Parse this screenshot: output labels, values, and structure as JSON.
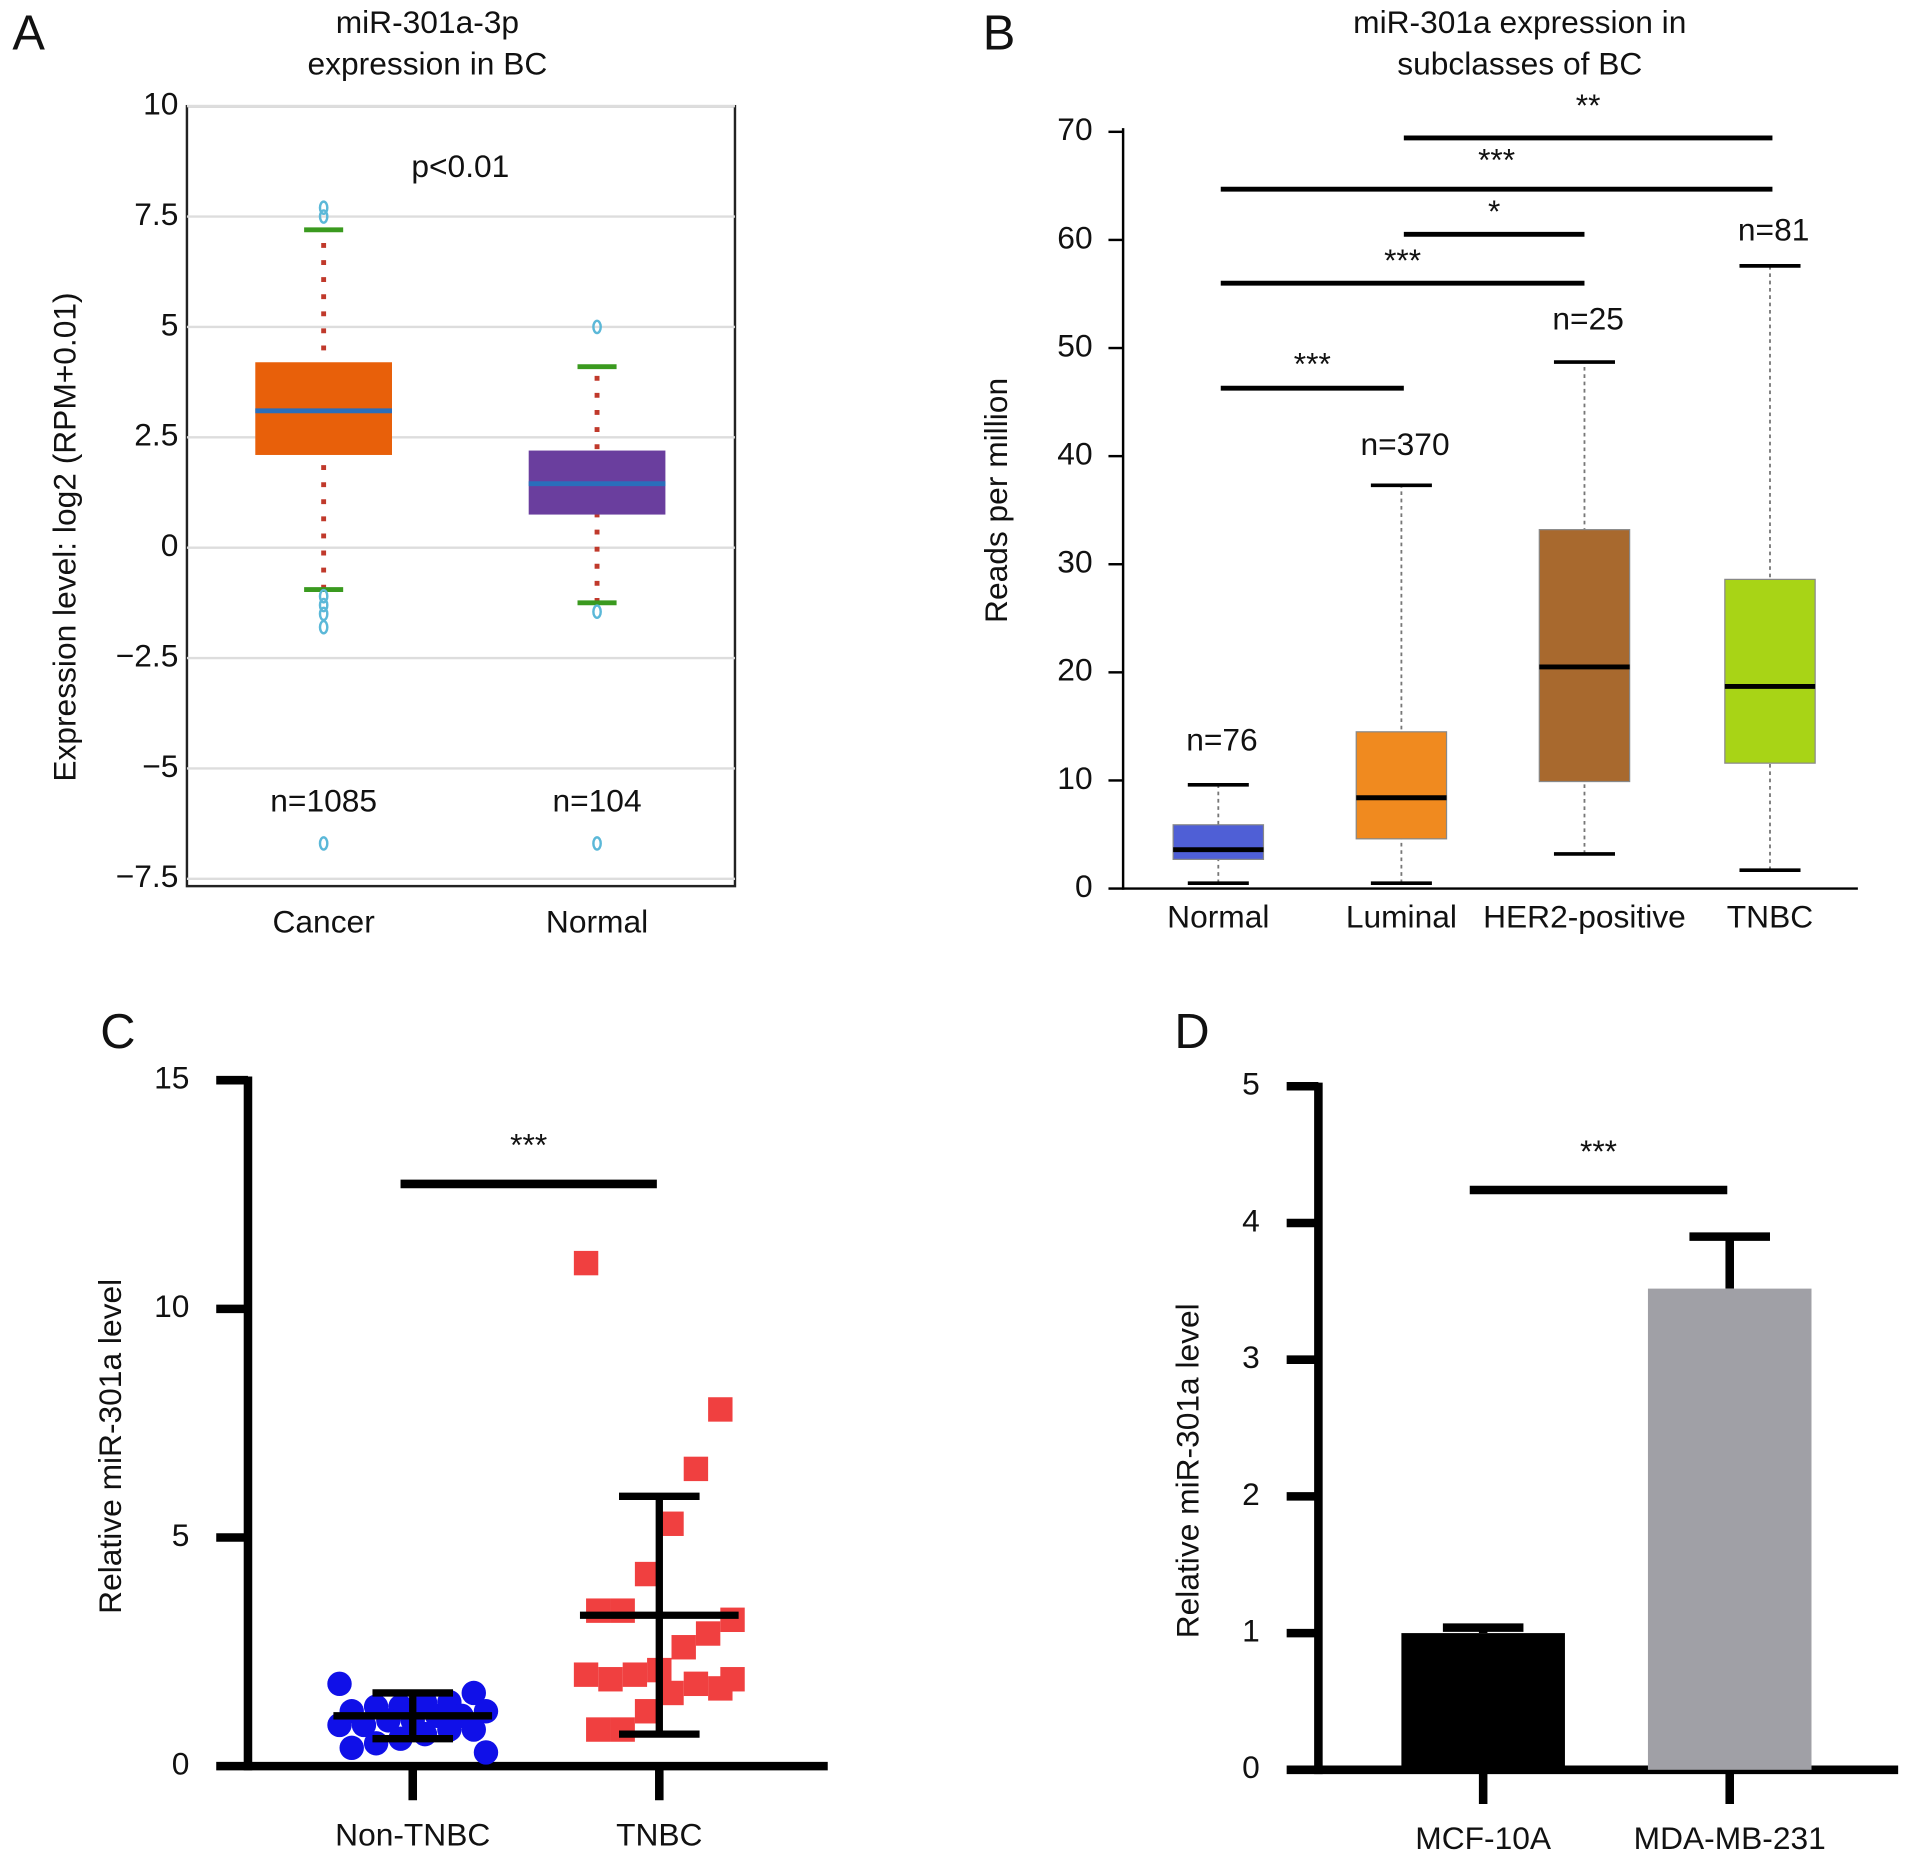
{
  "chart_data": [
    {
      "type": "box",
      "panel": "A",
      "title": [
        "miR-301a-3p",
        "expression in BC"
      ],
      "y_label": "Expression level: log2 (RPM+0.01)",
      "categories": [
        "Cancer",
        "Normal"
      ],
      "boxes": [
        {
          "color": "#e8600a",
          "whisker_low": -0.95,
          "q1": 2.1,
          "median": 3.1,
          "q3": 4.2,
          "whisker_high": 7.2,
          "outliers": [
            7.7,
            7.5,
            -1.1,
            -1.3,
            -1.5,
            -1.8,
            -6.7
          ]
        },
        {
          "color": "#6a3e9e",
          "whisker_low": -1.25,
          "q1": 0.75,
          "median": 1.45,
          "q3": 2.2,
          "whisker_high": 4.1,
          "outliers": [
            5.0,
            -1.45,
            -6.7
          ]
        }
      ],
      "n_labels": [
        "n=1085",
        "n=104"
      ],
      "annotation": "p<0.01",
      "median_color": "#2a6ebb",
      "cap_color": "#3a9a1f",
      "whisker_color": "#c0392b",
      "outlier_color": "#5bb8d8",
      "ylim": [
        -7.5,
        10
      ],
      "yticks": [
        {
          "value": -7.5,
          "label": "−7.5"
        },
        {
          "value": -5,
          "label": "−5"
        },
        {
          "value": -2.5,
          "label": "−2.5"
        },
        0,
        2.5,
        5,
        7.5,
        10
      ],
      "grid": true
    },
    {
      "type": "box",
      "panel": "B",
      "title": [
        "miR-301a expression in",
        "subclasses of BC"
      ],
      "y_label": "Reads per million",
      "categories": [
        "Normal",
        "Luminal",
        "HER2-positive",
        "TNBC"
      ],
      "boxes": [
        {
          "color": "#4f5fd6",
          "whisker_low": 0.5,
          "q1": 2.7,
          "median": 3.6,
          "q3": 5.9,
          "whisker_high": 9.6,
          "outliers": []
        },
        {
          "color": "#f08a1f",
          "whisker_low": 0.5,
          "q1": 4.6,
          "median": 8.4,
          "q3": 14.5,
          "whisker_high": 37.3,
          "outliers": []
        },
        {
          "color": "#a8692e",
          "whisker_low": 3.2,
          "q1": 9.9,
          "median": 20.5,
          "q3": 33.2,
          "whisker_high": 48.7,
          "outliers": []
        },
        {
          "color": "#a8d416",
          "whisker_low": 1.7,
          "q1": 11.6,
          "median": 18.7,
          "q3": 28.6,
          "whisker_high": 57.6,
          "outliers": []
        }
      ],
      "n_labels": [
        "n=76",
        "n=370",
        "n=25",
        "n=81"
      ],
      "significance": [
        "**",
        "***",
        "*",
        "***",
        "***"
      ],
      "median_color": "#000000",
      "cap_color": "#000000",
      "whisker_color": "#777777",
      "ylim": [
        0,
        70
      ],
      "yticks": [
        0,
        10,
        20,
        30,
        40,
        50,
        60,
        70
      ],
      "grid": false
    },
    {
      "type": "dot",
      "panel": "C",
      "y_label": "Relative miR-301a level",
      "categories": [
        "Non-TNBC",
        "TNBC"
      ],
      "groups": [
        {
          "color": "#1010e8",
          "marker": "circle",
          "mean": 1.1,
          "sd": 0.5,
          "values": [
            1.8,
            1.6,
            1.4,
            1.4,
            1.3,
            1.3,
            1.2,
            1.2,
            1.1,
            1.1,
            1.0,
            1.0,
            0.9,
            0.9,
            0.8,
            0.8,
            0.7,
            0.6,
            0.5,
            0.4,
            0.3
          ]
        },
        {
          "color": "#f04040",
          "marker": "square",
          "mean": 3.3,
          "sd": 2.6,
          "values": [
            11.0,
            7.8,
            6.5,
            5.3,
            4.2,
            3.4,
            3.4,
            3.2,
            2.9,
            2.6,
            2.1,
            2.0,
            1.9,
            2.0,
            1.7,
            1.8,
            1.6,
            1.2,
            0.8,
            0.8,
            1.9
          ]
        }
      ],
      "significance": [
        "***"
      ],
      "ylim": [
        0,
        15
      ],
      "yticks": [
        0,
        5,
        10,
        15
      ]
    },
    {
      "type": "bar",
      "panel": "D",
      "y_label": "Relative miR-301a level",
      "categories": [
        "MCF-10A",
        "MDA-MB-231"
      ],
      "values": [
        1.0,
        3.52
      ],
      "errors": [
        0.04,
        0.38
      ],
      "colors": [
        "#000000",
        "#a0a0a6"
      ],
      "significance": [
        "***"
      ],
      "ylim": [
        0,
        5
      ],
      "yticks": [
        0,
        1,
        2,
        3,
        4,
        5
      ]
    }
  ]
}
